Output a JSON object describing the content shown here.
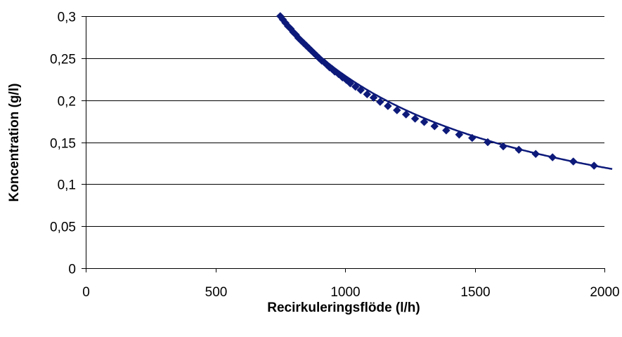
{
  "chart_data": {
    "type": "line",
    "xlabel": "Recirkuleringsflöde (l/h)",
    "ylabel": "Koncentration (g/l)",
    "xlim": [
      0,
      2000
    ],
    "ylim": [
      0,
      0.3
    ],
    "x_ticks": [
      0,
      500,
      1000,
      1500,
      2000
    ],
    "x_tick_labels": [
      "0",
      "500",
      "1000",
      "1500",
      "2000"
    ],
    "y_ticks": [
      0,
      0.05,
      0.1,
      0.15,
      0.2,
      0.25,
      0.3
    ],
    "y_tick_labels": [
      "0",
      "0,05",
      "0,1",
      "0,15",
      "0,2",
      "0,25",
      "0,3"
    ],
    "grid": "horizontal",
    "legend": "none",
    "series": [
      {
        "color": "#0d1a7a",
        "marker": "diamond",
        "x": [
          750,
          760,
          770,
          780,
          790,
          800,
          810,
          820,
          830,
          840,
          850,
          860,
          870,
          880,
          890,
          900,
          910,
          920,
          930,
          940,
          950,
          960,
          975,
          990,
          1005,
          1020,
          1040,
          1060,
          1085,
          1110,
          1135,
          1165,
          1200,
          1235,
          1270,
          1305,
          1345,
          1390,
          1440,
          1490,
          1550,
          1610,
          1670,
          1735,
          1800,
          1880,
          1960
        ],
        "y": [
          0.3,
          0.296,
          0.292,
          0.288,
          0.285,
          0.281,
          0.278,
          0.274,
          0.271,
          0.268,
          0.265,
          0.262,
          0.259,
          0.256,
          0.253,
          0.25,
          0.247,
          0.245,
          0.242,
          0.239,
          0.237,
          0.234,
          0.231,
          0.227,
          0.224,
          0.22,
          0.216,
          0.212,
          0.207,
          0.203,
          0.198,
          0.193,
          0.188,
          0.183,
          0.178,
          0.174,
          0.169,
          0.164,
          0.159,
          0.155,
          0.15,
          0.145,
          0.141,
          0.136,
          0.132,
          0.127,
          0.122
        ]
      }
    ]
  }
}
